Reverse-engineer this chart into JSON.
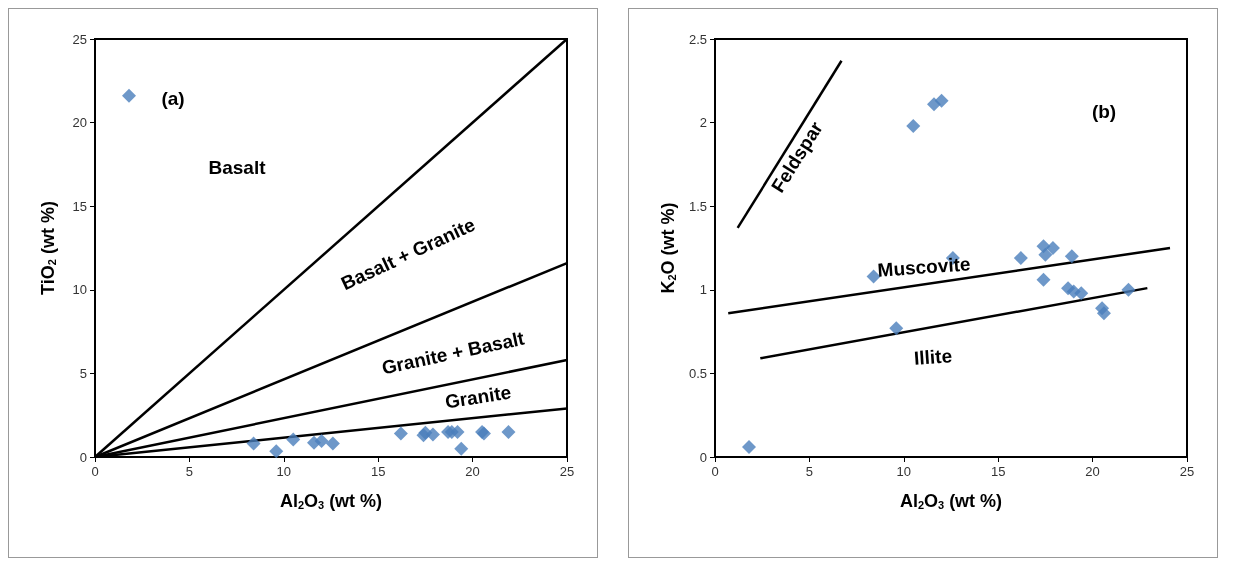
{
  "chart_data": [
    {
      "type": "scatter",
      "xlabel": "Al$_{2}$O$_{3}$ (wt %)",
      "ylabel": "TiO$_{2}$ (wt %)",
      "xlim": [
        0,
        25
      ],
      "xticks": [
        0,
        5,
        10,
        15,
        20,
        25
      ],
      "ylim": [
        0,
        25
      ],
      "yticks": [
        0,
        5,
        10,
        15,
        20,
        25
      ],
      "grid": false,
      "x": [
        1.8,
        8.4,
        9.6,
        10.5,
        11.6,
        12.0,
        12.6,
        16.2,
        17.4,
        17.5,
        17.9,
        18.7,
        18.9,
        19.2,
        19.4,
        20.5,
        20.6,
        21.9
      ],
      "series": [
        {
          "type": "scatter",
          "marker": "diamond",
          "color": "#4a7ebb",
          "values": [
            21.6,
            0.8,
            0.35,
            1.05,
            0.85,
            0.95,
            0.8,
            1.4,
            1.3,
            1.45,
            1.35,
            1.5,
            1.5,
            1.5,
            0.5,
            1.5,
            1.4,
            1.5
          ]
        },
        {
          "type": "line",
          "marker": "none",
          "color": "#000000",
          "x": [
            0,
            25
          ],
          "values": [
            0,
            25
          ]
        },
        {
          "type": "line",
          "marker": "none",
          "color": "#000000",
          "x": [
            0,
            25
          ],
          "values": [
            0,
            11.6
          ]
        },
        {
          "type": "line",
          "marker": "none",
          "color": "#000000",
          "x": [
            0,
            25
          ],
          "values": [
            0,
            5.8
          ]
        },
        {
          "type": "line",
          "marker": "none",
          "color": "#000000",
          "x": [
            0,
            25
          ],
          "values": [
            0,
            2.9
          ]
        }
      ],
      "annotations": [
        "(a)",
        "Basalt",
        "Basalt + Granite",
        "Granite + Basalt",
        "Granite"
      ]
    },
    {
      "type": "scatter",
      "xlabel": "Al$_{2}$O$_{3}$ (wt %)",
      "ylabel": "K$_{2}$O (wt %)",
      "xlim": [
        0,
        25
      ],
      "xticks": [
        0,
        5,
        10,
        15,
        20,
        25
      ],
      "ylim": [
        0,
        2.5
      ],
      "yticks": [
        0,
        0.5,
        1,
        1.5,
        2,
        2.5
      ],
      "grid": false,
      "x": [
        1.8,
        8.4,
        9.6,
        10.5,
        11.6,
        12.0,
        12.6,
        16.2,
        17.4,
        17.4,
        17.5,
        17.9,
        18.7,
        18.9,
        19.0,
        19.4,
        20.5,
        20.6,
        21.9
      ],
      "series": [
        {
          "type": "scatter",
          "marker": "diamond",
          "color": "#4a7ebb",
          "values": [
            0.06,
            1.08,
            0.77,
            1.98,
            2.11,
            2.13,
            1.19,
            1.19,
            1.06,
            1.26,
            1.21,
            1.25,
            1.01,
            1.2,
            0.99,
            0.98,
            0.89,
            0.86,
            1.0
          ]
        },
        {
          "type": "line",
          "marker": "none",
          "color": "#000000",
          "x": [
            1.2,
            6.7
          ],
          "values": [
            1.37,
            2.37
          ]
        },
        {
          "type": "line",
          "marker": "none",
          "color": "#000000",
          "x": [
            0.7,
            24.1
          ],
          "values": [
            0.86,
            1.25
          ]
        },
        {
          "type": "line",
          "marker": "none",
          "color": "#000000",
          "x": [
            2.4,
            22.9
          ],
          "values": [
            0.59,
            1.01
          ]
        }
      ],
      "annotations": [
        "(b)",
        "Feldspar",
        "Muscovite",
        "Illite"
      ]
    }
  ]
}
